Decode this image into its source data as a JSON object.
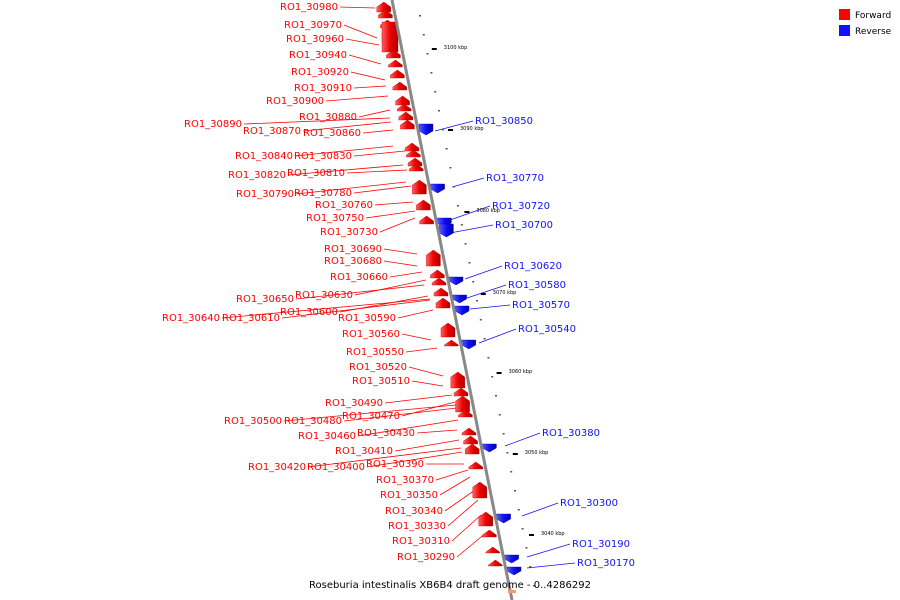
{
  "title": "Roseburia intestinalis XB6B4 draft genome - 0..4286292",
  "legend": {
    "forward": {
      "label": "Forward",
      "color": "#ff0000"
    },
    "reverse": {
      "label": "Reverse",
      "color": "#1111ff"
    }
  },
  "axis_color": "#888888",
  "ticks": [
    "3100 kbp",
    "3090 kbp",
    "3080 kbp",
    "3070 kbp",
    "3060 kbp",
    "3050 kbp",
    "3040 kbp"
  ],
  "forward_genes": [
    "RO1_30980",
    "RO1_30970",
    "RO1_30960",
    "RO1_30940",
    "RO1_30920",
    "RO1_30910",
    "RO1_30900",
    "RO1_30880",
    "RO1_30890",
    "RO1_30870",
    "RO1_30860",
    "RO1_30840",
    "RO1_30830",
    "RO1_30820",
    "RO1_30810",
    "RO1_30790",
    "RO1_30780",
    "RO1_30760",
    "RO1_30750",
    "RO1_30730",
    "RO1_30690",
    "RO1_30680",
    "RO1_30660",
    "RO1_30650",
    "RO1_30630",
    "RO1_30600",
    "RO1_30640",
    "RO1_30610",
    "RO1_30590",
    "RO1_30560",
    "RO1_30550",
    "RO1_30520",
    "RO1_30510",
    "RO1_30490",
    "RO1_30470",
    "RO1_30500",
    "RO1_30480",
    "RO1_30460",
    "RO1_30430",
    "RO1_30410",
    "RO1_30420",
    "RO1_30400",
    "RO1_30390",
    "RO1_30370",
    "RO1_30350",
    "RO1_30340",
    "RO1_30330",
    "RO1_30310",
    "RO1_30290"
  ],
  "reverse_genes": [
    "RO1_30850",
    "RO1_30770",
    "RO1_30720",
    "RO1_30700",
    "RO1_30620",
    "RO1_30580",
    "RO1_30570",
    "RO1_30540",
    "RO1_30380",
    "RO1_30300",
    "RO1_30190",
    "RO1_30170"
  ]
}
